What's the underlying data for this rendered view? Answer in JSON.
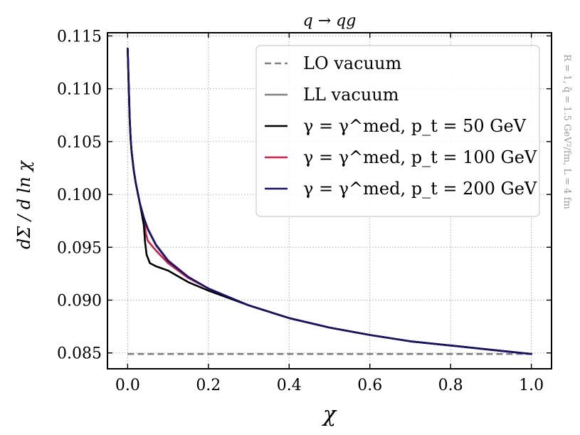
{
  "chart_data": {
    "type": "line",
    "title": "q → qg",
    "xlabel": "χ",
    "ylabel": "dΣ / d ln χ",
    "side_annotation": "R = 1, q̂ = 1.5 GeV²/fm, L = 4 fm",
    "xlim": [
      -0.05,
      1.05
    ],
    "ylim": [
      0.0835,
      0.1153
    ],
    "xticks": [
      0.0,
      0.2,
      0.4,
      0.6,
      0.8,
      1.0
    ],
    "xtick_labels": [
      "0.0",
      "0.2",
      "0.4",
      "0.6",
      "0.8",
      "1.0"
    ],
    "yticks": [
      0.085,
      0.09,
      0.095,
      0.1,
      0.105,
      0.11,
      0.115
    ],
    "ytick_labels": [
      "0.085",
      "0.090",
      "0.095",
      "0.100",
      "0.105",
      "0.110",
      "0.115"
    ],
    "grid": true,
    "legend_position": "top-right",
    "legend": [
      "LO vacuum",
      "LL vacuum",
      "γ = γ^med, p_t = 50 GeV",
      "γ = γ^med, p_t = 100 GeV",
      "γ = γ^med, p_t = 200 GeV"
    ],
    "series": [
      {
        "name": "LO vacuum",
        "color": "#808080",
        "style": "dashed",
        "x": [
          0.0,
          1.0
        ],
        "y": [
          0.0849,
          0.0849
        ]
      },
      {
        "name": "LL vacuum",
        "color": "#808080",
        "style": "solid",
        "x": [
          0.0,
          0.0025,
          0.005,
          0.0075,
          0.01,
          0.015,
          0.02,
          0.03,
          0.04,
          0.05,
          0.07,
          0.1,
          0.15,
          0.2,
          0.3,
          0.4,
          0.5,
          0.6,
          0.7,
          0.8,
          0.9,
          1.0
        ],
        "y": [
          0.1138,
          0.1105,
          0.1072,
          0.1052,
          0.104,
          0.1023,
          0.1011,
          0.0992,
          0.0978,
          0.0968,
          0.0953,
          0.0938,
          0.0922,
          0.0911,
          0.0895,
          0.0883,
          0.0874,
          0.0867,
          0.0861,
          0.0857,
          0.0853,
          0.0849
        ]
      },
      {
        "name": "γ = γ^med, p_t = 100 GeV",
        "color": "#d81b46",
        "style": "solid",
        "x": [
          0.0,
          0.0025,
          0.005,
          0.0075,
          0.01,
          0.015,
          0.02,
          0.03,
          0.04,
          0.045,
          0.05,
          0.07,
          0.1,
          0.15,
          0.2,
          0.3,
          0.4,
          0.5,
          0.6,
          0.7,
          0.8,
          0.9,
          1.0
        ],
        "y": [
          0.1138,
          0.1105,
          0.1072,
          0.1052,
          0.104,
          0.1023,
          0.1011,
          0.0992,
          0.0978,
          0.0963,
          0.0956,
          0.0947,
          0.0935,
          0.0921,
          0.0911,
          0.0895,
          0.0883,
          0.0874,
          0.0867,
          0.0861,
          0.0857,
          0.0853,
          0.0849
        ]
      },
      {
        "name": "γ = γ^med, p_t = 50 GeV",
        "color": "#000000",
        "style": "solid",
        "x": [
          0.0,
          0.0025,
          0.005,
          0.0075,
          0.01,
          0.015,
          0.02,
          0.03,
          0.04,
          0.043,
          0.047,
          0.055,
          0.07,
          0.1,
          0.15,
          0.2,
          0.3,
          0.4,
          0.5,
          0.6,
          0.7,
          0.8,
          0.9,
          1.0
        ],
        "y": [
          0.1138,
          0.1105,
          0.1072,
          0.1052,
          0.104,
          0.1023,
          0.1011,
          0.0992,
          0.0971,
          0.0955,
          0.0943,
          0.0935,
          0.0932,
          0.0928,
          0.0917,
          0.0909,
          0.0895,
          0.0883,
          0.0874,
          0.0867,
          0.0861,
          0.0857,
          0.0853,
          0.0849
        ]
      },
      {
        "name": "γ = γ^med, p_t = 200 GeV",
        "color": "#141470",
        "style": "solid",
        "x": [
          0.0,
          0.0025,
          0.005,
          0.0075,
          0.01,
          0.015,
          0.02,
          0.03,
          0.04,
          0.05,
          0.07,
          0.1,
          0.15,
          0.2,
          0.3,
          0.4,
          0.5,
          0.6,
          0.7,
          0.8,
          0.9,
          1.0
        ],
        "y": [
          0.1138,
          0.1105,
          0.1072,
          0.1052,
          0.104,
          0.1023,
          0.1011,
          0.0992,
          0.0978,
          0.0967,
          0.0952,
          0.0937,
          0.0922,
          0.0911,
          0.0895,
          0.0883,
          0.0874,
          0.0867,
          0.0861,
          0.0857,
          0.0853,
          0.0849
        ]
      }
    ]
  }
}
